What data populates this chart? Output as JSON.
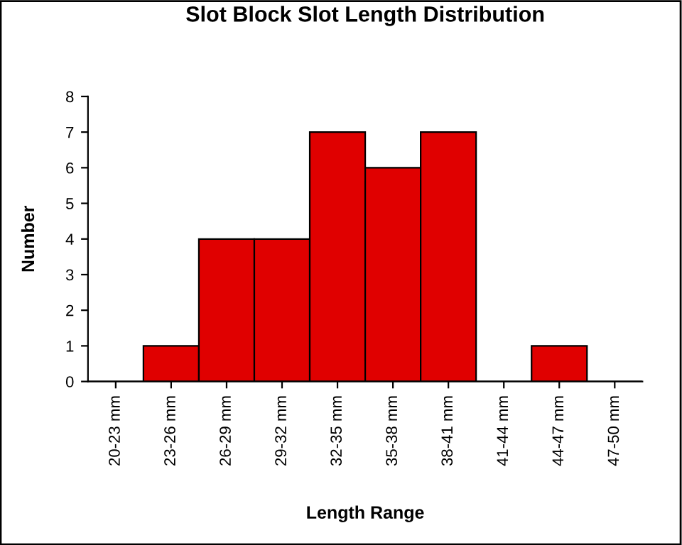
{
  "chart_data": {
    "type": "bar",
    "title": "Slot Block Slot Length Distribution",
    "xlabel": "Length Range",
    "ylabel": "Number",
    "categories": [
      "20-23 mm",
      "23-26 mm",
      "26-29 mm",
      "29-32 mm",
      "32-35 mm",
      "35-38 mm",
      "38-41 mm",
      "41-44 mm",
      "44-47 mm",
      "47-50 mm"
    ],
    "values": [
      0,
      1,
      4,
      4,
      7,
      6,
      7,
      0,
      1,
      0
    ],
    "color": "#e00000",
    "ylim": [
      0,
      8
    ],
    "yticks": [
      0,
      1,
      2,
      3,
      4,
      5,
      6,
      7,
      8
    ],
    "grid": false
  }
}
